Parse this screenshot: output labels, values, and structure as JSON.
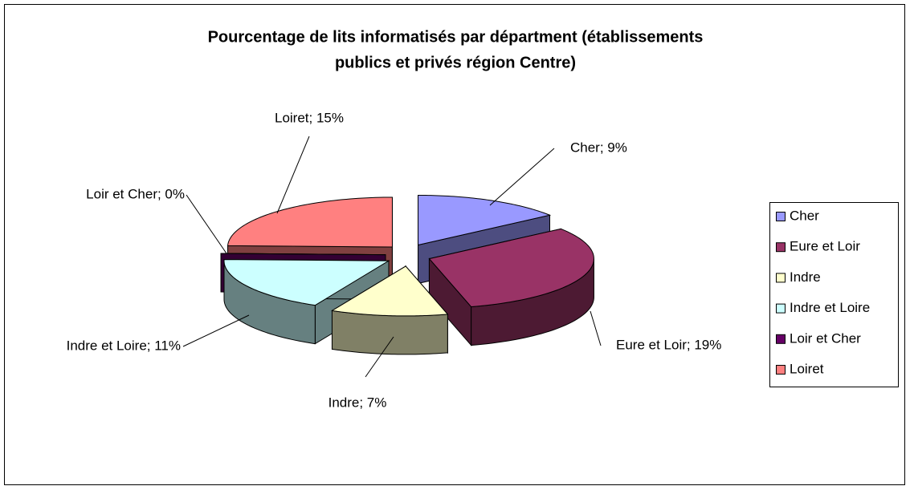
{
  "chart_data": {
    "type": "pie3d",
    "title": "Pourcentage de lits informatisés par départment (établissements",
    "subtitle": "publics et privés région Centre)",
    "categories": [
      "Cher",
      "Eure et Loir",
      "Indre",
      "Indre et Loire",
      "Loir et Cher",
      "Loiret"
    ],
    "values": [
      9,
      19,
      7,
      11,
      0,
      15
    ],
    "value_labels": [
      "Cher; 9%",
      "Eure et Loir; 19%",
      "Indre; 7%",
      "Indre et Loire; 11%",
      "Loir et Cher; 0%",
      "Loiret; 15%"
    ],
    "colors": [
      "#9999ff",
      "#993366",
      "#ffffcc",
      "#ccffff",
      "#660066",
      "#ff8080"
    ],
    "legend": "right"
  }
}
